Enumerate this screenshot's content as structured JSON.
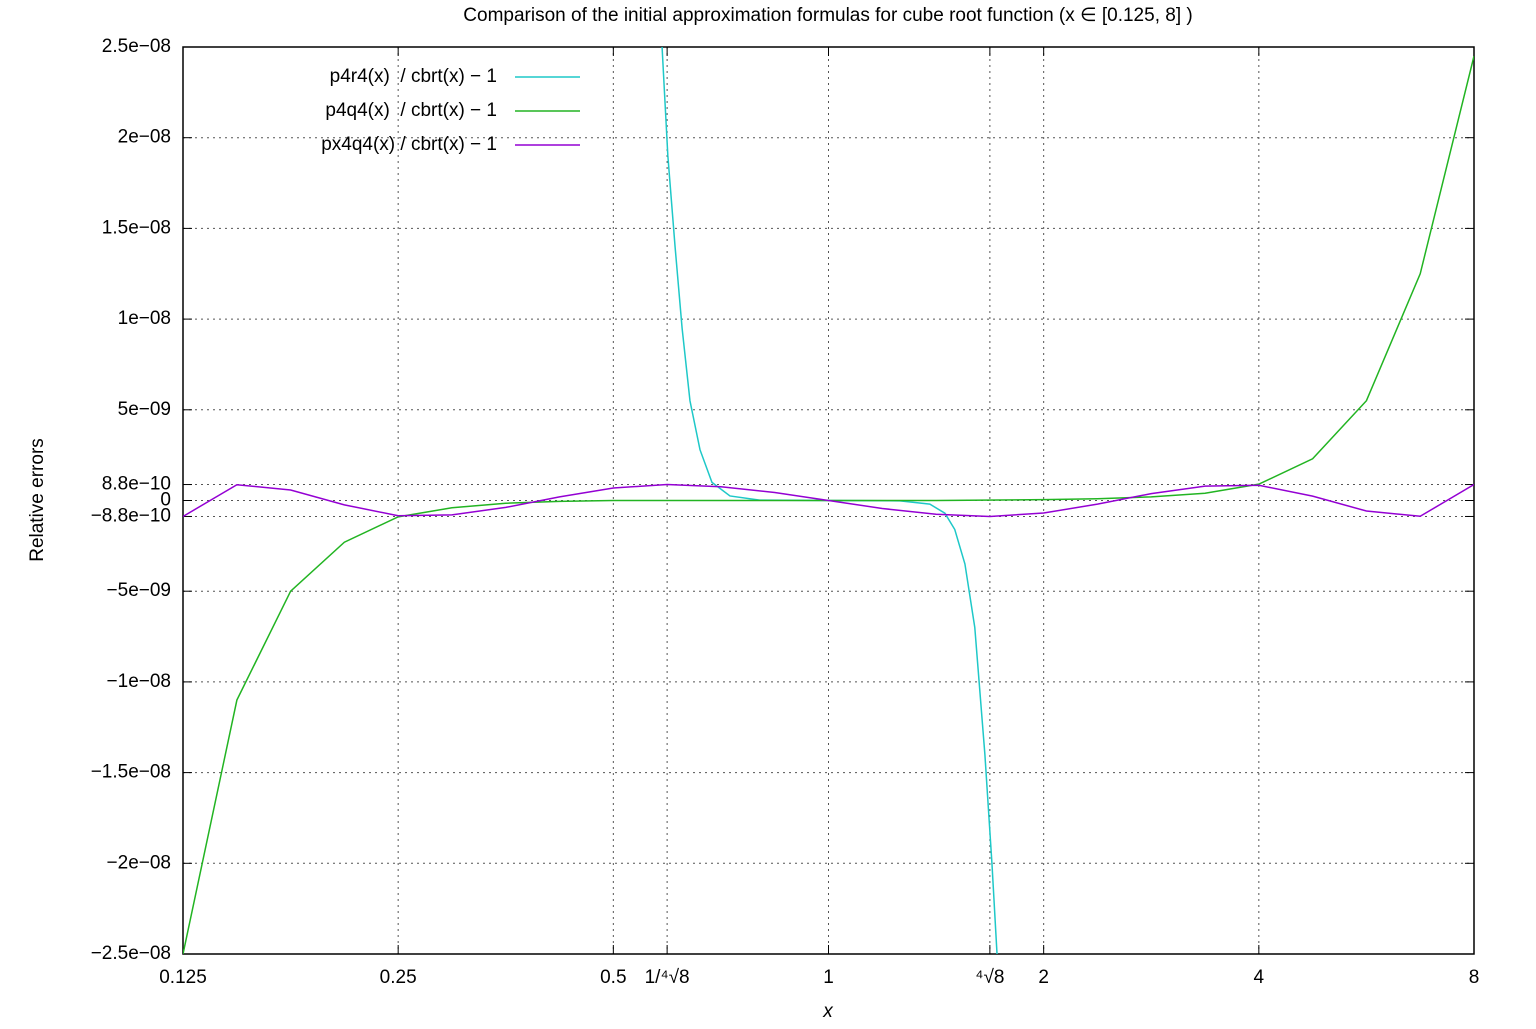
{
  "chart_data": {
    "type": "line",
    "title": "Comparison of the initial approximation formulas for cube root function (x ∈ [0.125, 8] )",
    "xlabel": "x",
    "ylabel": "Relative errors",
    "xscale": "log",
    "xlim": [
      0.125,
      8
    ],
    "ylim": [
      -2.5e-08,
      2.5e-08
    ],
    "xticks": [
      0.125,
      0.25,
      0.5,
      {
        "value": 0.5946,
        "label": "1/⁴√8"
      },
      1,
      {
        "value": 1.6818,
        "label": "⁴√8"
      },
      2,
      4,
      8
    ],
    "yticks": [
      {
        "value": 2.5e-08,
        "label": "2.5e−08"
      },
      {
        "value": 2e-08,
        "label": "2e−08"
      },
      {
        "value": 1.5e-08,
        "label": "1.5e−08"
      },
      {
        "value": 1e-08,
        "label": "1e−08"
      },
      {
        "value": 5e-09,
        "label": "5e−09"
      },
      {
        "value": 8.8e-10,
        "label": "8.8e−10"
      },
      0,
      {
        "value": -8.8e-10,
        "label": "−8.8e−10"
      },
      {
        "value": -5e-09,
        "label": "−5e−09"
      },
      {
        "value": -1e-08,
        "label": "−1e−08"
      },
      {
        "value": -1.5e-08,
        "label": "−1.5e−08"
      },
      {
        "value": -2e-08,
        "label": "−2e−08"
      },
      {
        "value": -2.5e-08,
        "label": "−2.5e−08"
      }
    ],
    "grid": true,
    "legend": "top left",
    "series": [
      {
        "name": "p4r4(x)  / cbrt(x) − 1",
        "color": "#1ec8c8",
        "x": [
          0.585,
          0.596,
          0.61,
          0.624,
          0.64,
          0.661,
          0.687,
          0.728,
          0.801,
          1,
          1.259,
          1.386,
          1.455,
          1.502,
          1.552,
          1.602,
          1.655,
          1.693,
          1.721
        ],
        "values": [
          2.5e-08,
          1.9e-08,
          1.4e-08,
          9.5e-09,
          5.5e-09,
          2.8e-09,
          1e-09,
          2.5e-10,
          2e-11,
          0,
          -2e-11,
          -2e-10,
          -7e-10,
          -1.6e-09,
          -3.5e-09,
          -7e-09,
          -1.4e-08,
          -2e-08,
          -2.5e-08
        ]
      },
      {
        "name": "p4q4(x)  / cbrt(x) − 1",
        "color": "#22b422",
        "x": [
          0.125,
          0.1487,
          0.1768,
          0.2102,
          0.25,
          0.2973,
          0.3536,
          0.4204,
          0.5,
          0.7071,
          1,
          1.4142,
          2,
          2.3784,
          2.8284,
          3.3636,
          4,
          4.7568,
          5.6569,
          6.7272,
          8
        ],
        "values": [
          -2.5e-08,
          -1.1e-08,
          -5e-09,
          -2.3e-09,
          -9e-10,
          -4e-10,
          -1.5e-10,
          -5e-11,
          0,
          0,
          0,
          0,
          5e-11,
          1e-10,
          2e-10,
          4e-10,
          9e-10,
          2.3e-09,
          5.5e-09,
          1.25e-08,
          2.45e-08
        ]
      },
      {
        "name": "px4q4(x) / cbrt(x) − 1",
        "color": "#9400d3",
        "x": [
          0.125,
          0.1487,
          0.1768,
          0.2102,
          0.25,
          0.2973,
          0.3536,
          0.4204,
          0.5,
          0.5946,
          0.7071,
          0.8409,
          1,
          1.1892,
          1.4142,
          1.6818,
          2,
          2.3784,
          2.8284,
          3.3636,
          4,
          4.7568,
          5.6569,
          6.7272,
          8
        ],
        "values": [
          -8.8e-10,
          8.7e-10,
          5.8e-10,
          -2.4e-10,
          -8.4e-10,
          -7.9e-10,
          -3.8e-10,
          2e-10,
          6.9e-10,
          8.8e-10,
          7.6e-10,
          4.4e-10,
          0,
          -4.4e-10,
          -7.6e-10,
          -8.8e-10,
          -6.9e-10,
          -2e-10,
          3.8e-10,
          7.9e-10,
          8.4e-10,
          2.4e-10,
          -5.8e-10,
          -8.7e-10,
          8.8e-10
        ]
      }
    ]
  }
}
